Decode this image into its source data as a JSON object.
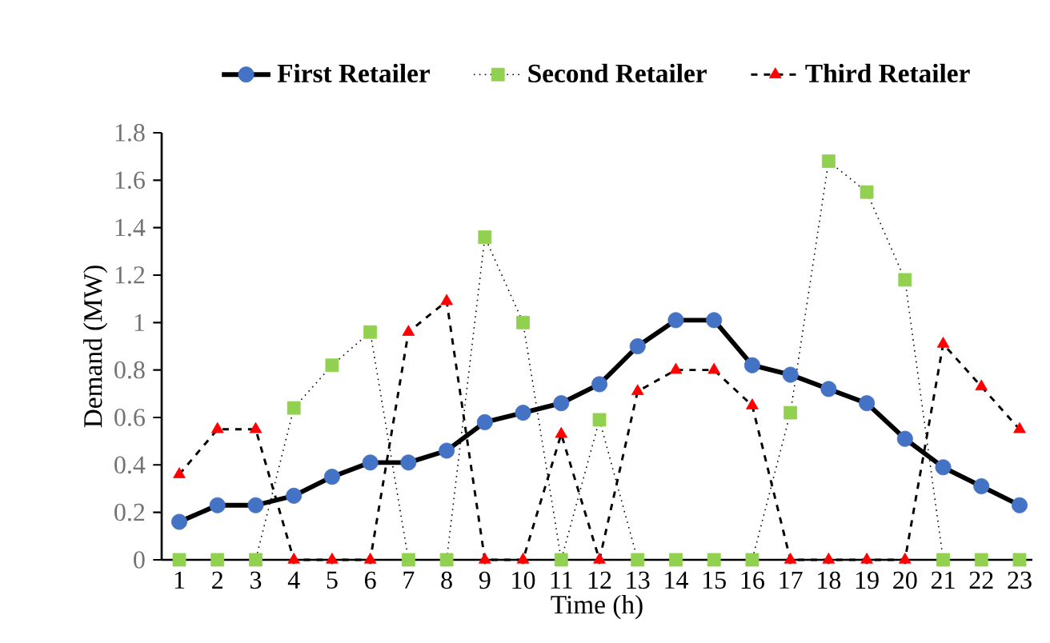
{
  "chart_data": {
    "type": "line",
    "xlabel": "Time (h)",
    "ylabel": "Demand (MW)",
    "categories": [
      "1",
      "2",
      "3",
      "4",
      "5",
      "6",
      "7",
      "8",
      "9",
      "10",
      "11",
      "12",
      "13",
      "14",
      "15",
      "16",
      "17",
      "18",
      "19",
      "20",
      "21",
      "22",
      "23"
    ],
    "series": [
      {
        "name": "First Retailer",
        "color": "#4472c4",
        "marker": "circle",
        "line_style": "solid",
        "values": [
          0.16,
          0.23,
          0.23,
          0.27,
          0.35,
          0.41,
          0.41,
          0.46,
          0.58,
          0.62,
          0.66,
          0.74,
          0.9,
          1.01,
          1.01,
          0.82,
          0.78,
          0.72,
          0.66,
          0.51,
          0.39,
          0.31,
          0.23
        ]
      },
      {
        "name": "Second Retailer",
        "color": "#92d050",
        "marker": "square",
        "line_style": "dotted",
        "values": [
          0,
          0,
          0,
          0.64,
          0.82,
          0.96,
          0,
          0,
          1.36,
          1.0,
          0,
          0.59,
          0,
          0,
          0,
          0,
          0.62,
          1.68,
          1.55,
          1.18,
          0,
          0,
          0
        ]
      },
      {
        "name": "Third Retailer",
        "color": "#ff0000",
        "marker": "triangle",
        "line_style": "dashed",
        "values": [
          0.36,
          0.55,
          0.55,
          0,
          0,
          0,
          0.96,
          1.09,
          0,
          0,
          0.53,
          0,
          0.71,
          0.8,
          0.8,
          0.65,
          0,
          0,
          0,
          0,
          0.91,
          0.73,
          0.55
        ]
      }
    ],
    "ylim": [
      0,
      1.8
    ],
    "yticks": [
      0,
      0.2,
      0.4,
      0.6,
      0.8,
      1,
      1.2,
      1.4,
      1.6,
      1.8
    ],
    "grid": false,
    "legend": "top"
  }
}
